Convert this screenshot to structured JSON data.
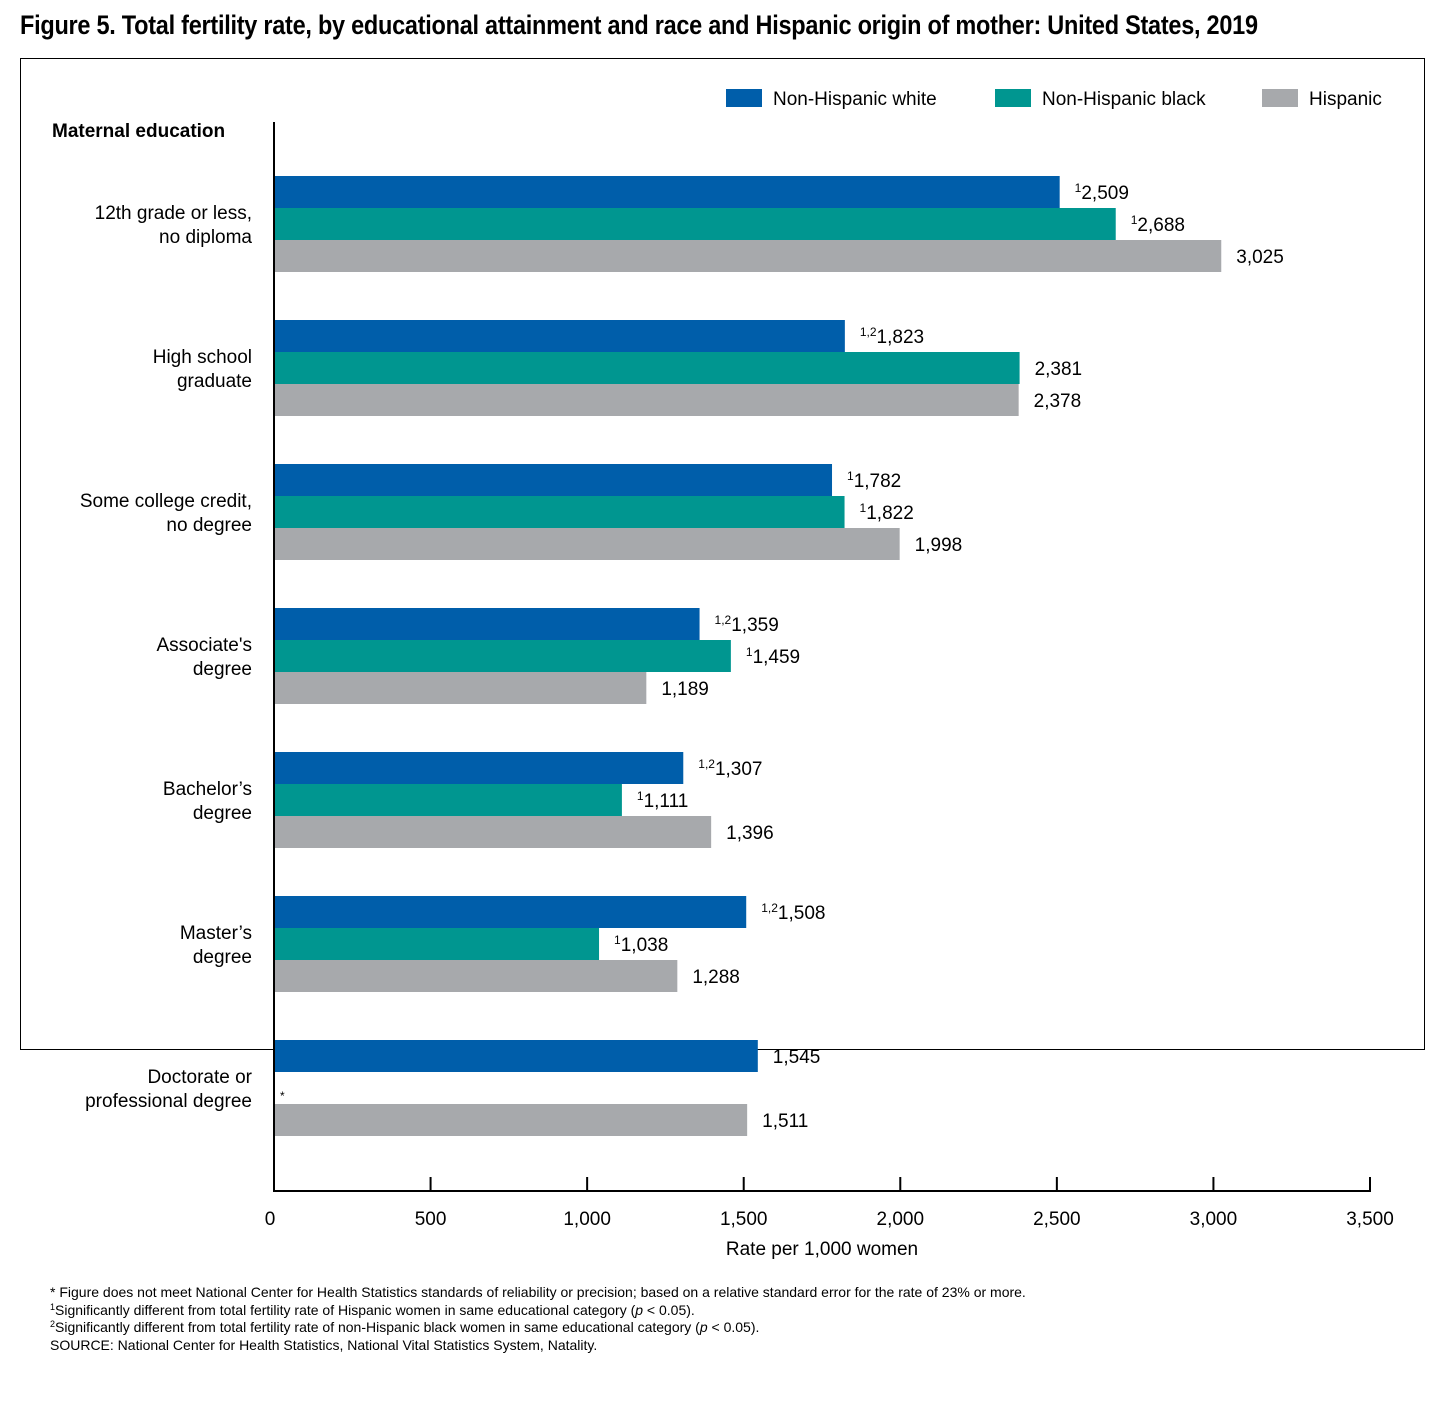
{
  "title": "Figure 5. Total fertility rate, by educational attainment and race and Hispanic origin of mother: United States, 2019",
  "colors": {
    "nh_white": "#005EAA",
    "nh_black": "#009690",
    "hispanic": "#A7A9AC",
    "axis": "#000000"
  },
  "chart_data": {
    "type": "bar",
    "orientation": "horizontal",
    "title": "",
    "ylabel": "Maternal education",
    "xlabel": "Rate per 1,000 women",
    "xlim": [
      0,
      3500
    ],
    "xticks": [
      0,
      500,
      1000,
      1500,
      2000,
      2500,
      3000,
      3500
    ],
    "xtick_labels": [
      "0",
      "500",
      "1,000",
      "1,500",
      "2,000",
      "2,500",
      "3,000",
      "3,500"
    ],
    "grid": false,
    "legend_position": "top-right",
    "categories": [
      [
        "12th grade or less,",
        "no diploma"
      ],
      [
        "High school",
        "graduate"
      ],
      [
        "Some college credit,",
        "no degree"
      ],
      [
        "Associate's",
        "degree"
      ],
      [
        "Bachelor’s",
        "degree"
      ],
      [
        "Master’s",
        "degree"
      ],
      [
        "Doctorate or",
        "professional degree"
      ]
    ],
    "series": [
      {
        "name": "Non-Hispanic white",
        "color_key": "nh_white",
        "values": [
          2509,
          1823,
          1782,
          1359,
          1307,
          1508,
          1545
        ],
        "labels": [
          "2,509",
          "1,823",
          "1,782",
          "1,359",
          "1,307",
          "1,508",
          "1,545"
        ],
        "marks": [
          "1",
          "1,2",
          "1",
          "1,2",
          "1,2",
          "1,2",
          ""
        ]
      },
      {
        "name": "Non-Hispanic black",
        "color_key": "nh_black",
        "values": [
          2688,
          2381,
          1822,
          1459,
          1111,
          1038,
          null
        ],
        "labels": [
          "2,688",
          "2,381",
          "1,822",
          "1,459",
          "1,111",
          "1,038",
          "*"
        ],
        "marks": [
          "1",
          "",
          "1",
          "1",
          "1",
          "1",
          ""
        ]
      },
      {
        "name": "Hispanic",
        "color_key": "hispanic",
        "values": [
          3025,
          2378,
          1998,
          1189,
          1396,
          1288,
          1511
        ],
        "labels": [
          "3,025",
          "2,378",
          "1,998",
          "1,189",
          "1,396",
          "1,288",
          "1,511"
        ],
        "marks": [
          "",
          "",
          "",
          "",
          "",
          "",
          ""
        ]
      }
    ]
  },
  "footnotes": {
    "asterisk_note": "* Figure does not meet National Center for Health Statistics standards of reliability or precision; based on a relative standard error for the rate of 23% or more.",
    "note1_mark": "1",
    "note1_text": "Significantly different from total fertility rate of Hispanic women in same educational category (",
    "note2_mark": "2",
    "note2_text": "Significantly different from total fertility rate of non-Hispanic black women in same educational category (",
    "p_symbol": "p",
    "p_value": " < 0.05).",
    "source": "SOURCE: National Center for Health Statistics, National Vital Statistics System, Natality."
  }
}
